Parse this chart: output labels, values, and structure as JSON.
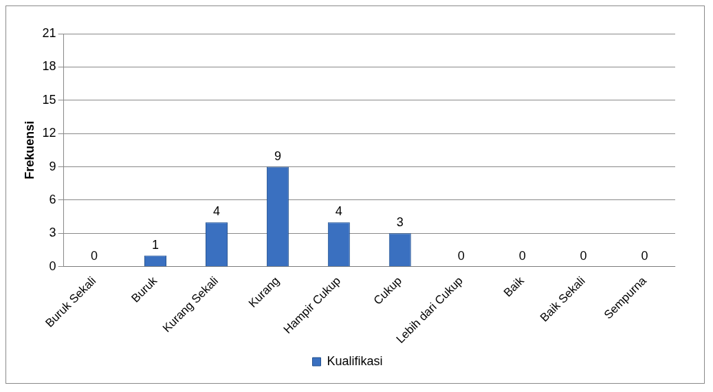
{
  "chart_data": {
    "type": "bar",
    "ylabel": "Frekuensi",
    "categories": [
      "Buruk Sekali",
      "Buruk",
      "Kurang Sekali",
      "Kurang",
      "Hampir Cukup",
      "Cukup",
      "Lebih dari Cukup",
      "Baik",
      "Baik Sekali",
      "Sempurna"
    ],
    "series": [
      {
        "name": "Kualifikasi",
        "color": "#3a70c0",
        "values": [
          0,
          1,
          4,
          9,
          4,
          3,
          0,
          0,
          0,
          0
        ]
      }
    ],
    "ylim": [
      0,
      21
    ],
    "yticks": [
      0,
      3,
      6,
      9,
      12,
      15,
      18,
      21
    ],
    "grid": "y",
    "legend": "bottom",
    "data_labels": true
  }
}
